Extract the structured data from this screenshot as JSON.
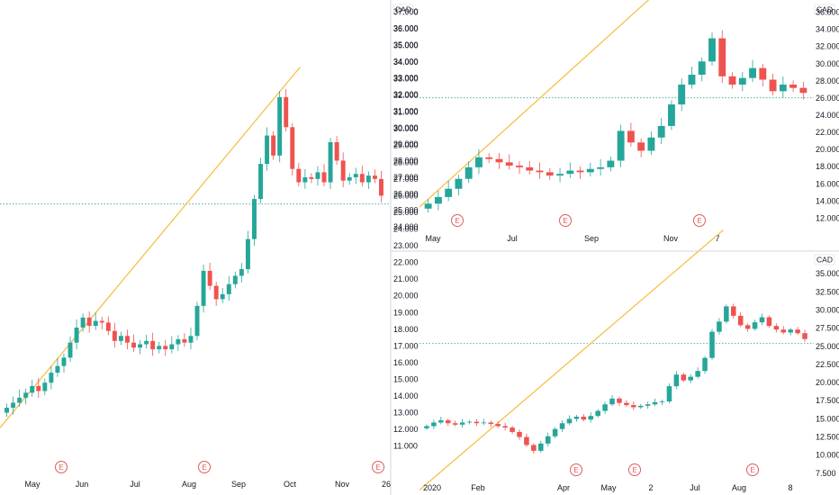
{
  "colors": {
    "up": "#26a69a",
    "down": "#ef5350",
    "trendline": "#f7c04a",
    "price_line": "#26a69a",
    "earnings": "#e05b5b",
    "axis_text": "#131722",
    "divider": "#d1d4dc"
  },
  "chart_data": [
    {
      "type": "candlestick",
      "currency": "CAD",
      "x_ticks": [
        "May",
        "Jun",
        "Jul",
        "Aug",
        "Sep",
        "Oct",
        "Nov",
        "26"
      ],
      "y_ticks": [
        "11.000",
        "12.000",
        "13.000",
        "14.000",
        "15.000",
        "16.000",
        "17.000",
        "18.000",
        "19.000",
        "20.000",
        "21.000",
        "22.000",
        "23.000",
        "24.000",
        "25.000",
        "26.000",
        "27.000",
        "28.000",
        "29.000",
        "30.000",
        "31.000",
        "32.000",
        "33.000",
        "34.000",
        "35.000",
        "36.000",
        "37.000"
      ],
      "ylim": [
        10.5,
        37.5
      ],
      "earnings_markers": [
        "E",
        "E",
        "E"
      ],
      "series_close": [
        13.3,
        13.6,
        13.9,
        14.2,
        14.6,
        14.3,
        14.8,
        15.4,
        15.8,
        16.3,
        17.2,
        18.1,
        18.7,
        18.2,
        18.5,
        18.4,
        17.9,
        17.3,
        17.6,
        17.2,
        16.9,
        17.1,
        17.3,
        16.8,
        17.0,
        16.8,
        17.1,
        17.4,
        17.2,
        17.6,
        19.4,
        21.5,
        20.6,
        19.8,
        20.1,
        20.7,
        21.2,
        21.6,
        23.4,
        25.8,
        27.9,
        29.6,
        28.4,
        31.9,
        30.1,
        27.6,
        26.8,
        27.1,
        27.0,
        27.4,
        26.8,
        29.2,
        28.1,
        26.9,
        27.1,
        27.3,
        26.8,
        27.2,
        27.0,
        26.0
      ],
      "price_level": 25.5,
      "trendline": [
        [
          13.0,
          12.1
        ],
        [
          18.7,
          18.5
        ],
        [
          28.5,
          29.3
        ],
        [
          31.9,
          33.7
        ]
      ]
    },
    {
      "type": "candlestick",
      "currency": "CAD",
      "x_ticks": [
        "May",
        "Jul",
        "Sep",
        "Nov",
        "7"
      ],
      "y_ticks": [
        "24.000",
        "25.000",
        "26.000",
        "27.000",
        "28.000",
        "29.000",
        "30.000",
        "31.000",
        "32.000",
        "33.000",
        "34.000",
        "35.000",
        "36.000",
        "37.000"
      ],
      "y_ticks_right": [
        "12.000",
        "14.000",
        "16.000",
        "18.000",
        "20.000",
        "22.000",
        "24.000",
        "26.000",
        "28.000",
        "30.000",
        "32.000",
        "34.000",
        "36.000"
      ],
      "ylim": [
        24.0,
        37.5
      ],
      "earnings_markers": [
        "E",
        "E",
        "E"
      ],
      "series_close": [
        25.4,
        25.8,
        26.3,
        26.9,
        27.6,
        28.2,
        28.1,
        27.9,
        27.7,
        27.6,
        27.4,
        27.3,
        27.1,
        27.2,
        27.4,
        27.3,
        27.5,
        27.6,
        28.0,
        29.8,
        29.1,
        28.6,
        29.4,
        30.1,
        31.4,
        32.6,
        33.2,
        34.0,
        35.4,
        33.1,
        32.6,
        33.0,
        33.6,
        32.9,
        32.2,
        32.6,
        32.4,
        32.1
      ],
      "price_level": 31.8
    },
    {
      "type": "candlestick",
      "currency": "CAD",
      "x_ticks": [
        "2020",
        "Feb",
        "Apr",
        "May",
        "2",
        "Jul",
        "Aug",
        "8"
      ],
      "y_ticks": [
        "7.500",
        "10.000",
        "12.500",
        "15.000",
        "17.500",
        "20.000",
        "22.500",
        "25.000",
        "27.500",
        "30.000",
        "32.500",
        "35.000"
      ],
      "ylim": [
        6.0,
        36.5
      ],
      "earnings_markers": [
        "E",
        "E",
        "E"
      ],
      "series_close": [
        14.0,
        14.5,
        14.8,
        14.4,
        14.2,
        14.5,
        14.6,
        14.4,
        14.5,
        14.3,
        14.0,
        13.8,
        13.2,
        12.5,
        11.4,
        10.6,
        11.6,
        12.6,
        13.6,
        14.4,
        15.0,
        15.3,
        14.9,
        15.4,
        16.1,
        17.0,
        17.8,
        17.2,
        16.9,
        16.6,
        16.8,
        17.0,
        17.3,
        17.4,
        19.5,
        21.1,
        20.3,
        20.8,
        21.6,
        23.4,
        27.0,
        28.4,
        30.5,
        29.2,
        27.9,
        27.4,
        28.3,
        29.0,
        27.8,
        27.3,
        26.9,
        27.3,
        26.8,
        26.0
      ],
      "price_level": 25.4,
      "trendline": [
        [
          7.8,
          5.2
        ],
        [
          15.5,
          13.7
        ],
        [
          26.8,
          28.5
        ],
        [
          35.0,
          41.0
        ]
      ]
    }
  ]
}
